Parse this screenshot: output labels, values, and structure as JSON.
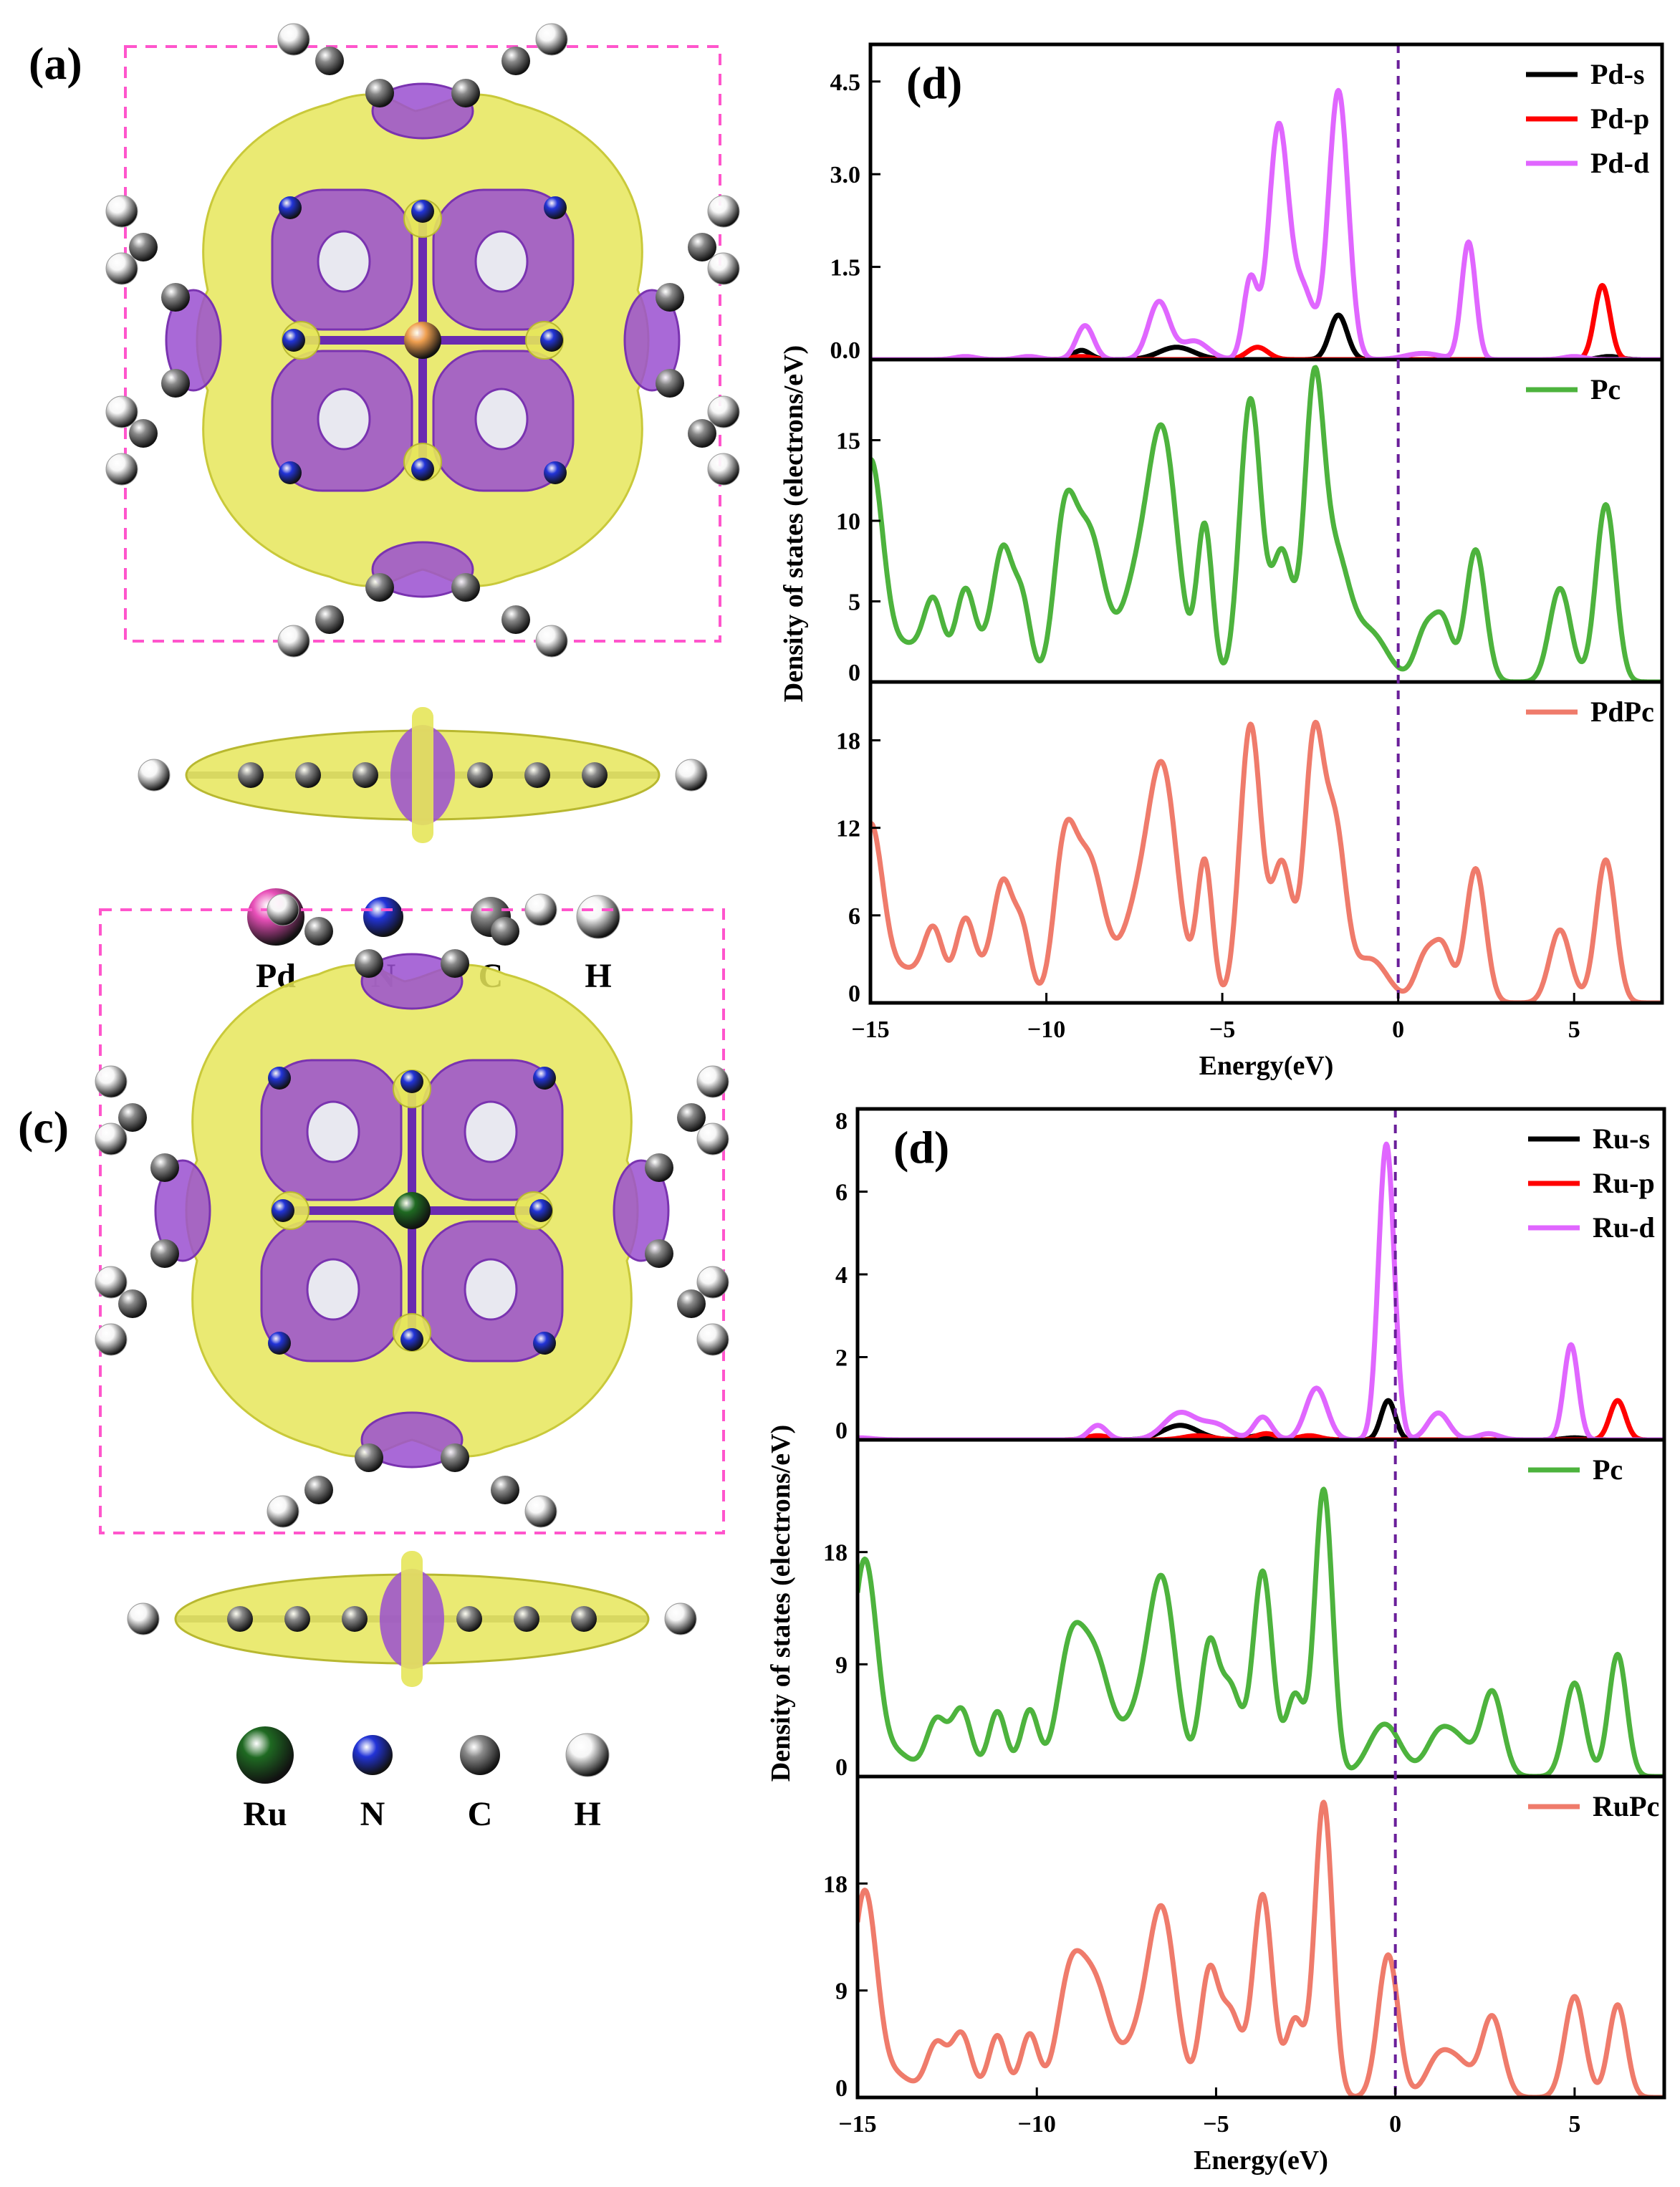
{
  "panel_labels": {
    "a": "(a)",
    "c": "(c)",
    "d_top": "(d)",
    "d_bottom": "(d)"
  },
  "structures": [
    {
      "name": "PdPc",
      "metal": "Pd",
      "metal_color": "#e84fb8",
      "legend": [
        {
          "label": "Pd",
          "color": "#e84fb8"
        },
        {
          "label": "N",
          "color": "#2234d8"
        },
        {
          "label": "C",
          "color": "#808080"
        },
        {
          "label": "H",
          "color": "#f2f2f2"
        }
      ]
    },
    {
      "name": "RuPc",
      "metal": "Ru",
      "metal_color": "#1f6a22",
      "legend": [
        {
          "label": "Ru",
          "color": "#1f6a22"
        },
        {
          "label": "N",
          "color": "#2234d8"
        },
        {
          "label": "C",
          "color": "#808080"
        },
        {
          "label": "H",
          "color": "#f2f2f2"
        }
      ]
    }
  ],
  "colors": {
    "isosurface_yellow": "#e6e65a",
    "isosurface_purple": "#9a4fd0",
    "box_dash": "#ff55cc",
    "fermi_line": "#6a1f9a"
  },
  "chart_data": [
    {
      "type": "line",
      "panel": "(d)",
      "xlabel": "Energy(eV)",
      "ylabel": "Density of states (electrons/eV)",
      "xlim": [
        -15,
        7.5
      ],
      "xticks": [
        -15,
        -10,
        -5,
        0,
        5
      ],
      "fermi_level": 0,
      "subplots": [
        {
          "ylim": [
            0,
            5.1
          ],
          "yticks": [
            "0.0",
            "1.5",
            "3.0",
            "4.5"
          ],
          "yticks_v": [
            0,
            1.5,
            3.0,
            4.5
          ],
          "legend_position": "top-right",
          "series": [
            {
              "name": "Pd-s",
              "color": "#000000",
              "peaks": [
                [
                  -9,
                  0.15,
                  0.25
                ],
                [
                  -6.3,
                  0.2,
                  0.5
                ],
                [
                  -1.7,
                  0.72,
                  0.25
                ],
                [
                  6.0,
                  0.05,
                  0.3
                ]
              ]
            },
            {
              "name": "Pd-p",
              "color": "#ff0000",
              "peaks": [
                [
                  -4.0,
                  0.2,
                  0.3
                ],
                [
                  -9,
                  0.05,
                  0.3
                ],
                [
                  5.8,
                  1.2,
                  0.22
                ]
              ]
            },
            {
              "name": "Pd-d",
              "color": "#e066ff",
              "peaks": [
                [
                  -12.3,
                  0.05,
                  0.3
                ],
                [
                  -10.5,
                  0.05,
                  0.3
                ],
                [
                  -8.9,
                  0.55,
                  0.25
                ],
                [
                  -6.8,
                  0.93,
                  0.3
                ],
                [
                  -5.8,
                  0.3,
                  0.4
                ],
                [
                  -4.2,
                  1.3,
                  0.2
                ],
                [
                  -3.4,
                  3.75,
                  0.28
                ],
                [
                  -2.7,
                  1.1,
                  0.3
                ],
                [
                  -1.7,
                  4.35,
                  0.28
                ],
                [
                  0.7,
                  0.1,
                  0.5
                ],
                [
                  2.0,
                  1.9,
                  0.2
                ],
                [
                  5.0,
                  0.05,
                  0.3
                ]
              ]
            }
          ]
        },
        {
          "ylim": [
            0,
            20
          ],
          "yticks": [
            "0",
            "5",
            "10",
            "15"
          ],
          "yticks_v": [
            0,
            5,
            10,
            15
          ],
          "legend_position": "top-right",
          "series": [
            {
              "name": "Pc",
              "color": "#4db33d",
              "peaks": [
                [
                  -15,
                  13.5,
                  0.35
                ],
                [
                  -14,
                  2.2,
                  0.5
                ],
                [
                  -13.2,
                  4.6,
                  0.28
                ],
                [
                  -12.3,
                  5.7,
                  0.28
                ],
                [
                  -11.5,
                  3.0,
                  0.3
                ],
                [
                  -11.2,
                  6.0,
                  0.25
                ],
                [
                  -10.7,
                  5.0,
                  0.25
                ],
                [
                  -9.5,
                  8.5,
                  0.3
                ],
                [
                  -8.8,
                  9.3,
                  0.45
                ],
                [
                  -7.5,
                  5.0,
                  0.4
                ],
                [
                  -6.7,
                  15.2,
                  0.42
                ],
                [
                  -5.5,
                  9.6,
                  0.22
                ],
                [
                  -4.2,
                  17.5,
                  0.3
                ],
                [
                  -3.3,
                  8.0,
                  0.3
                ],
                [
                  -2.4,
                  16.8,
                  0.27
                ],
                [
                  -1.8,
                  7.5,
                  0.4
                ],
                [
                  -0.8,
                  3.0,
                  0.5
                ],
                [
                  0.8,
                  3.3,
                  0.3
                ],
                [
                  1.3,
                  3.2,
                  0.25
                ],
                [
                  2.2,
                  8.2,
                  0.28
                ],
                [
                  4.6,
                  5.8,
                  0.3
                ],
                [
                  5.9,
                  11.0,
                  0.28
                ]
              ]
            }
          ]
        },
        {
          "ylim": [
            0,
            22
          ],
          "yticks": [
            "0",
            "6",
            "12",
            "18"
          ],
          "yticks_v": [
            0,
            6,
            12,
            18
          ],
          "legend_position": "top-right",
          "series": [
            {
              "name": "PdPc",
              "color": "#ef7b6b",
              "peaks": [
                [
                  -15,
                  12.0,
                  0.35
                ],
                [
                  -14,
                  2.2,
                  0.5
                ],
                [
                  -13.2,
                  4.6,
                  0.28
                ],
                [
                  -12.3,
                  5.7,
                  0.28
                ],
                [
                  -11.5,
                  3.0,
                  0.3
                ],
                [
                  -11.2,
                  6.0,
                  0.25
                ],
                [
                  -10.7,
                  5.0,
                  0.25
                ],
                [
                  -9.5,
                  9.0,
                  0.3
                ],
                [
                  -8.8,
                  9.8,
                  0.45
                ],
                [
                  -7.5,
                  5.0,
                  0.4
                ],
                [
                  -6.7,
                  15.8,
                  0.42
                ],
                [
                  -5.5,
                  9.6,
                  0.22
                ],
                [
                  -4.2,
                  19.0,
                  0.3
                ],
                [
                  -3.3,
                  9.5,
                  0.3
                ],
                [
                  -2.4,
                  17.3,
                  0.27
                ],
                [
                  -1.8,
                  11.5,
                  0.3
                ],
                [
                  -0.8,
                  3.0,
                  0.5
                ],
                [
                  0.8,
                  3.3,
                  0.3
                ],
                [
                  1.3,
                  3.2,
                  0.25
                ],
                [
                  2.2,
                  9.2,
                  0.28
                ],
                [
                  4.6,
                  5.0,
                  0.3
                ],
                [
                  5.9,
                  9.8,
                  0.28
                ]
              ]
            }
          ]
        }
      ]
    },
    {
      "type": "line",
      "panel": "(d)",
      "xlabel": "Energy(eV)",
      "ylabel": "Density of states (electrons/eV)",
      "xlim": [
        -15,
        7.5
      ],
      "xticks": [
        -15,
        -10,
        -5,
        0,
        5
      ],
      "fermi_level": 0,
      "subplots": [
        {
          "ylim": [
            0,
            8
          ],
          "yticks": [
            "0",
            "2",
            "4",
            "6",
            "8"
          ],
          "yticks_v": [
            0,
            2,
            4,
            6,
            8
          ],
          "legend_position": "top-right",
          "series": [
            {
              "name": "Ru-s",
              "color": "#000000",
              "peaks": [
                [
                  -6,
                  0.35,
                  0.5
                ],
                [
                  -3.8,
                  0.1,
                  0.3
                ],
                [
                  -0.2,
                  0.95,
                  0.2
                ],
                [
                  5.0,
                  0.05,
                  0.3
                ]
              ]
            },
            {
              "name": "Ru-p",
              "color": "#ff0000",
              "peaks": [
                [
                  -8.3,
                  0.1,
                  0.3
                ],
                [
                  -5.5,
                  0.1,
                  0.4
                ],
                [
                  -3.6,
                  0.15,
                  0.3
                ],
                [
                  -2.4,
                  0.1,
                  0.3
                ],
                [
                  6.2,
                  0.95,
                  0.22
                ]
              ]
            },
            {
              "name": "Ru-d",
              "color": "#e066ff",
              "peaks": [
                [
                  -15,
                  0.05,
                  0.4
                ],
                [
                  -8.3,
                  0.35,
                  0.25
                ],
                [
                  -6.0,
                  0.65,
                  0.45
                ],
                [
                  -5.0,
                  0.35,
                  0.4
                ],
                [
                  -3.7,
                  0.55,
                  0.25
                ],
                [
                  -2.2,
                  1.25,
                  0.3
                ],
                [
                  -0.25,
                  7.15,
                  0.22
                ],
                [
                  1.2,
                  0.65,
                  0.3
                ],
                [
                  2.6,
                  0.15,
                  0.3
                ],
                [
                  4.9,
                  2.3,
                  0.2
                ]
              ]
            }
          ]
        },
        {
          "ylim": [
            0,
            27
          ],
          "yticks": [
            "0",
            "9",
            "18"
          ],
          "yticks_v": [
            0,
            9,
            18
          ],
          "legend_position": "top-right",
          "series": [
            {
              "name": "Pc",
              "color": "#4db33d",
              "peaks": [
                [
                  -15,
                  7.5,
                  0.3
                ],
                [
                  -14.7,
                  11.5,
                  0.3
                ],
                [
                  -14,
                  2.0,
                  0.5
                ],
                [
                  -12.8,
                  4.4,
                  0.28
                ],
                [
                  -12.1,
                  5.3,
                  0.28
                ],
                [
                  -11.1,
                  5.2,
                  0.25
                ],
                [
                  -10.2,
                  5.3,
                  0.25
                ],
                [
                  -9.1,
                  8.5,
                  0.35
                ],
                [
                  -8.4,
                  9.5,
                  0.45
                ],
                [
                  -7.2,
                  4.0,
                  0.4
                ],
                [
                  -6.5,
                  15.2,
                  0.38
                ],
                [
                  -5.2,
                  10.0,
                  0.25
                ],
                [
                  -4.6,
                  7.0,
                  0.3
                ],
                [
                  -3.7,
                  16.4,
                  0.27
                ],
                [
                  -2.8,
                  6.5,
                  0.25
                ],
                [
                  -2.0,
                  23.0,
                  0.25
                ],
                [
                  -0.3,
                  4.2,
                  0.45
                ],
                [
                  1.2,
                  3.2,
                  0.35
                ],
                [
                  1.8,
                  2.5,
                  0.35
                ],
                [
                  2.7,
                  6.8,
                  0.3
                ],
                [
                  5.0,
                  7.5,
                  0.28
                ],
                [
                  6.2,
                  9.8,
                  0.25
                ]
              ]
            }
          ]
        },
        {
          "ylim": [
            0,
            27
          ],
          "yticks": [
            "0",
            "9",
            "18"
          ],
          "yticks_v": [
            0,
            9,
            18
          ],
          "legend_position": "top-right",
          "series": [
            {
              "name": "RuPc",
              "color": "#ef7b6b",
              "peaks": [
                [
                  -15,
                  7.5,
                  0.3
                ],
                [
                  -14.7,
                  11.5,
                  0.3
                ],
                [
                  -14,
                  2.0,
                  0.5
                ],
                [
                  -12.8,
                  4.4,
                  0.28
                ],
                [
                  -12.1,
                  5.3,
                  0.28
                ],
                [
                  -11.1,
                  5.2,
                  0.25
                ],
                [
                  -10.2,
                  5.3,
                  0.25
                ],
                [
                  -9.1,
                  8.5,
                  0.35
                ],
                [
                  -8.4,
                  9.5,
                  0.45
                ],
                [
                  -7.2,
                  4.0,
                  0.4
                ],
                [
                  -6.5,
                  15.2,
                  0.38
                ],
                [
                  -5.2,
                  10.0,
                  0.25
                ],
                [
                  -4.6,
                  7.0,
                  0.3
                ],
                [
                  -3.7,
                  17.0,
                  0.27
                ],
                [
                  -2.8,
                  6.5,
                  0.25
                ],
                [
                  -2.0,
                  24.8,
                  0.25
                ],
                [
                  -0.2,
                  12.0,
                  0.28
                ],
                [
                  1.2,
                  3.2,
                  0.35
                ],
                [
                  1.8,
                  2.5,
                  0.35
                ],
                [
                  2.7,
                  6.8,
                  0.3
                ],
                [
                  5.0,
                  8.5,
                  0.28
                ],
                [
                  6.2,
                  7.8,
                  0.25
                ]
              ]
            }
          ]
        }
      ]
    }
  ]
}
